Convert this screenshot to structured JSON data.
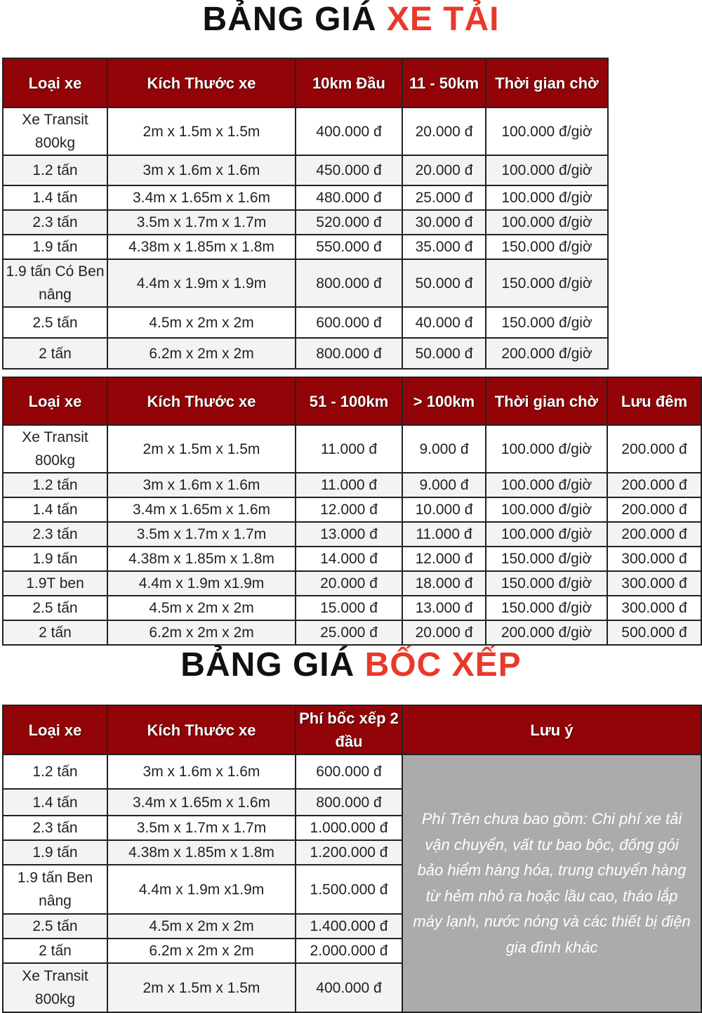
{
  "title1": {
    "main": "BẢNG GIÁ",
    "accent": "XE TẢI"
  },
  "table1": {
    "headers": [
      "Loại xe",
      "Kích Thước xe",
      "10km Đầu",
      "11 - 50km",
      "Thời gian chờ"
    ],
    "rows": [
      [
        "Xe Transit 800kg",
        "2m x 1.5m x 1.5m",
        "400.000 đ",
        "20.000 đ",
        "100.000 đ/giờ"
      ],
      [
        "1.2 tấn",
        "3m x 1.6m x 1.6m",
        "450.000 đ",
        "20.000 đ",
        "100.000 đ/giờ"
      ],
      [
        "1.4 tấn",
        "3.4m x 1.65m x 1.6m",
        "480.000 đ",
        "25.000 đ",
        "100.000 đ/giờ"
      ],
      [
        "2.3 tấn",
        "3.5m x 1.7m x 1.7m",
        "520.000 đ",
        "30.000 đ",
        "100.000 đ/giờ"
      ],
      [
        "1.9 tấn",
        "4.38m x 1.85m x 1.8m",
        "550.000 đ",
        "35.000 đ",
        "150.000 đ/giờ"
      ],
      [
        "1.9 tấn Có Ben nâng",
        "4.4m x 1.9m x 1.9m",
        "800.000 đ",
        "50.000 đ",
        "150.000 đ/giờ"
      ],
      [
        "2.5 tấn",
        "4.5m x 2m x 2m",
        "600.000 đ",
        "40.000 đ",
        "150.000 đ/giờ"
      ],
      [
        "2 tấn",
        "6.2m x 2m x 2m",
        "800.000 đ",
        "50.000 đ",
        "200.000 đ/giờ"
      ]
    ]
  },
  "table2": {
    "headers": [
      "Loại xe",
      "Kích Thước xe",
      "51 - 100km",
      "> 100km",
      "Thời gian chờ",
      "Lưu đêm"
    ],
    "rows": [
      [
        "Xe Transit 800kg",
        "2m x 1.5m x 1.5m",
        "11.000 đ",
        "9.000 đ",
        "100.000 đ/giờ",
        "200.000 đ"
      ],
      [
        "1.2 tấn",
        "3m x 1.6m x 1.6m",
        "11.000 đ",
        "9.000 đ",
        "100.000 đ/giờ",
        "200.000 đ"
      ],
      [
        "1.4 tấn",
        "3.4m x 1.65m x 1.6m",
        "12.000 đ",
        "10.000 đ",
        "100.000 đ/giờ",
        "200.000 đ"
      ],
      [
        "2.3 tấn",
        "3.5m x 1.7m x 1.7m",
        "13.000 đ",
        "11.000 đ",
        "100.000 đ/giờ",
        "200.000 đ"
      ],
      [
        "1.9 tấn",
        "4.38m x 1.85m x 1.8m",
        "14.000 đ",
        "12.000 đ",
        "150.000 đ/giờ",
        "300.000 đ"
      ],
      [
        "1.9T ben",
        "4.4m x 1.9m x1.9m",
        "20.000 đ",
        "18.000 đ",
        "150.000 đ/giờ",
        "300.000 đ"
      ],
      [
        "2.5 tấn",
        "4.5m x 2m x 2m",
        "15.000 đ",
        "13.000 đ",
        "150.000 đ/giờ",
        "300.000 đ"
      ],
      [
        "2 tấn",
        "6.2m x 2m x 2m",
        "25.000 đ",
        "20.000 đ",
        "200.000 đ/giờ",
        "500.000 đ"
      ]
    ]
  },
  "title2": {
    "main": "BẢNG GIÁ",
    "accent": "BỐC XẾP"
  },
  "table3": {
    "headers": [
      "Loại xe",
      "Kích Thước xe",
      "Phí bốc xếp 2 đầu",
      "Lưu ý"
    ],
    "rows": [
      [
        "1.2 tấn",
        "3m x 1.6m x 1.6m",
        "600.000 đ"
      ],
      [
        "1.4 tấn",
        "3.4m x 1.65m x 1.6m",
        "800.000 đ"
      ],
      [
        "2.3 tấn",
        "3.5m x 1.7m x 1.7m",
        "1.000.000 đ"
      ],
      [
        "1.9 tấn",
        "4.38m x 1.85m x 1.8m",
        "1.200.000 đ"
      ],
      [
        "1.9 tấn Ben nâng",
        "4.4m x 1.9m x1.9m",
        "1.500.000 đ"
      ],
      [
        "2.5 tấn",
        "4.5m x 2m x 2m",
        "1.400.000 đ"
      ],
      [
        "2 tấn",
        "6.2m x 2m x 2m",
        "2.000.000 đ"
      ],
      [
        "Xe Transit 800kg",
        "2m x 1.5m x 1.5m",
        "400.000 đ"
      ]
    ],
    "note": "Phí Trên chưa bao gồm: Chi phí xe tải vận chuyển, vất tư bao bộc, đống gói bảo hiểm hàng hóa, trung chuyển hàng từ hẻm nhỏ ra hoặc lầu cao, tháo lắp máy lạnh, nước nóng và các thiết bị điện gia đình khác"
  },
  "colors": {
    "header_bg": "#920407",
    "accent": "#e8392b",
    "note_bg": "#ababab"
  }
}
